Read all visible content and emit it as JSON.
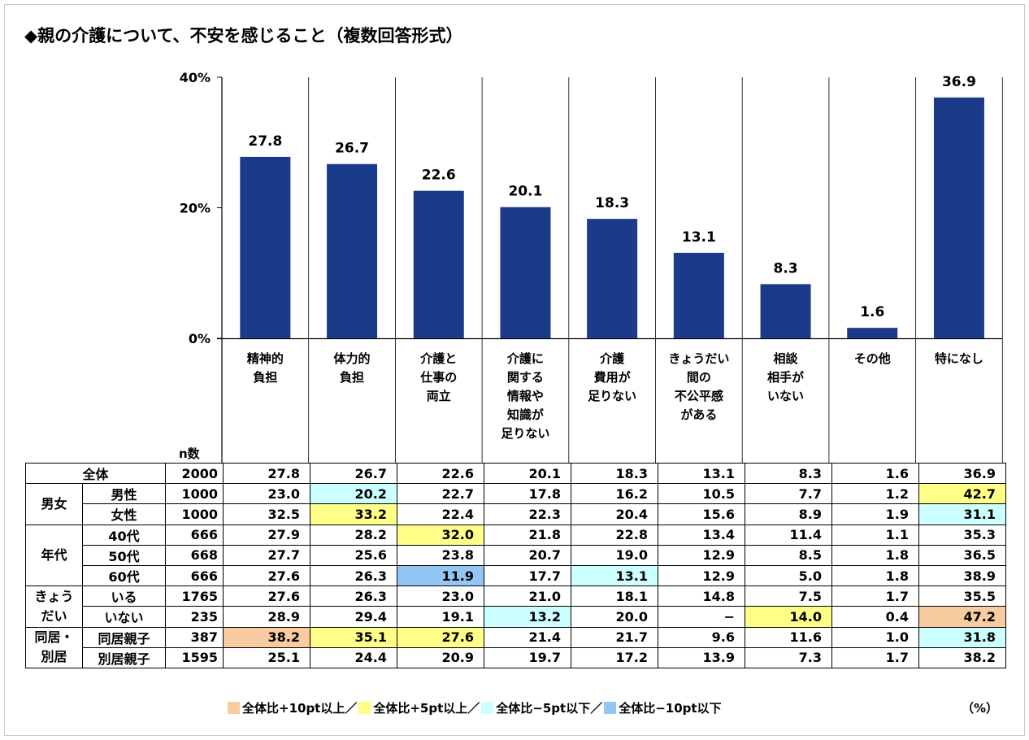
{
  "title": "◆親の介護について、不安を感じること（複数回答形式）",
  "colors": {
    "bar": "#1c3a8a",
    "over10": "#f8cba0",
    "over5": "#ffff88",
    "under5": "#ccffff",
    "under10": "#93c6f5"
  },
  "chart_data": {
    "type": "bar",
    "categories": [
      "精神的\n負担",
      "体力的\n負担",
      "介護と\n仕事の\n両立",
      "介護に\n関する\n情報や\n知識が\n足りない",
      "介護\n費用が\n足りない",
      "きょうだい\n間の\n不公平感\nがある",
      "相談\n相手が\nいない",
      "その他",
      "特になし"
    ],
    "values": [
      27.8,
      26.7,
      22.6,
      20.1,
      18.3,
      13.1,
      8.3,
      1.6,
      36.9
    ],
    "value_labels": [
      "27.8",
      "26.7",
      "22.6",
      "20.1",
      "18.3",
      "13.1",
      "8.3",
      "1.6",
      "36.9"
    ],
    "ylim": [
      0,
      40
    ],
    "yticks": [
      "0%",
      "20%",
      "40%"
    ],
    "grid": false,
    "n_label": "n数",
    "unit": "（%）",
    "legend": [
      "全体比+10pt以上／",
      "全体比+5pt以上／",
      "全体比−5pt以下／",
      "全体比−10pt以下"
    ]
  },
  "table": {
    "rows": [
      {
        "group": "",
        "label": "全体",
        "n": "2000",
        "values": [
          "27.8",
          "26.7",
          "22.6",
          "20.1",
          "18.3",
          "13.1",
          "8.3",
          "1.6",
          "36.9"
        ],
        "hl": [
          "",
          "",
          "",
          "",
          "",
          "",
          "",
          "",
          ""
        ]
      },
      {
        "group": "男女",
        "label": "男性",
        "n": "1000",
        "values": [
          "23.0",
          "20.2",
          "22.7",
          "17.8",
          "16.2",
          "10.5",
          "7.7",
          "1.2",
          "42.7"
        ],
        "hl": [
          "",
          "c",
          "",
          "",
          "",
          "",
          "",
          "",
          "y"
        ]
      },
      {
        "group": "",
        "label": "女性",
        "n": "1000",
        "values": [
          "32.5",
          "33.2",
          "22.4",
          "22.3",
          "20.4",
          "15.6",
          "8.9",
          "1.9",
          "31.1"
        ],
        "hl": [
          "",
          "y",
          "",
          "",
          "",
          "",
          "",
          "",
          "c"
        ]
      },
      {
        "group": "年代",
        "label": "40代",
        "n": "666",
        "values": [
          "27.9",
          "28.2",
          "32.0",
          "21.8",
          "22.8",
          "13.4",
          "11.4",
          "1.1",
          "35.3"
        ],
        "hl": [
          "",
          "",
          "y",
          "",
          "",
          "",
          "",
          "",
          ""
        ]
      },
      {
        "group": "",
        "label": "50代",
        "n": "668",
        "values": [
          "27.7",
          "25.6",
          "23.8",
          "20.7",
          "19.0",
          "12.9",
          "8.5",
          "1.8",
          "36.5"
        ],
        "hl": [
          "",
          "",
          "",
          "",
          "",
          "",
          "",
          "",
          ""
        ]
      },
      {
        "group": "",
        "label": "60代",
        "n": "666",
        "values": [
          "27.6",
          "26.3",
          "11.9",
          "17.7",
          "13.1",
          "12.9",
          "5.0",
          "1.8",
          "38.9"
        ],
        "hl": [
          "",
          "",
          "b",
          "",
          "c",
          "",
          "",
          "",
          ""
        ]
      },
      {
        "group": "きょう\nだい",
        "label": "いる",
        "n": "1765",
        "values": [
          "27.6",
          "26.3",
          "23.0",
          "21.0",
          "18.1",
          "14.8",
          "7.5",
          "1.7",
          "35.5"
        ],
        "hl": [
          "",
          "",
          "",
          "",
          "",
          "",
          "",
          "",
          ""
        ]
      },
      {
        "group": "",
        "label": "いない",
        "n": "235",
        "values": [
          "28.9",
          "29.4",
          "19.1",
          "13.2",
          "20.0",
          "−",
          "14.0",
          "0.4",
          "47.2"
        ],
        "hl": [
          "",
          "",
          "",
          "c",
          "",
          "",
          "y",
          "",
          "o"
        ]
      },
      {
        "group": "同居・\n別居",
        "label": "同居親子",
        "n": "387",
        "values": [
          "38.2",
          "35.1",
          "27.6",
          "21.4",
          "21.7",
          "9.6",
          "11.6",
          "1.0",
          "31.8"
        ],
        "hl": [
          "o",
          "y",
          "y",
          "",
          "",
          "",
          "",
          "",
          "c"
        ]
      },
      {
        "group": "",
        "label": "別居親子",
        "n": "1595",
        "values": [
          "25.1",
          "24.4",
          "20.9",
          "19.7",
          "17.2",
          "13.9",
          "7.3",
          "1.7",
          "38.2"
        ],
        "hl": [
          "",
          "",
          "",
          "",
          "",
          "",
          "",
          "",
          ""
        ]
      }
    ]
  }
}
